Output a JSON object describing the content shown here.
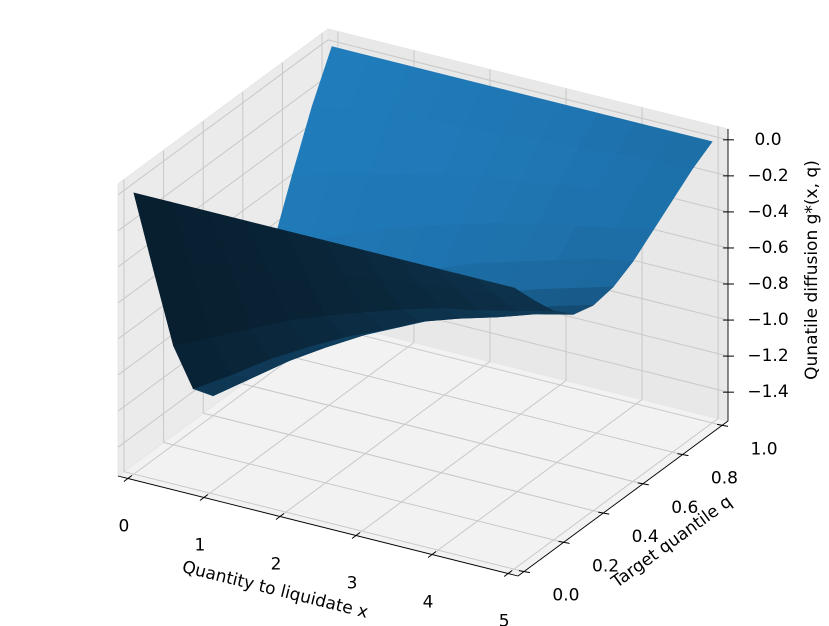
{
  "chart_data": {
    "type": "surface",
    "xlabel": "Quantity to liquidate x",
    "ylabel": "Target quantile q",
    "zlabel": "Qunatile diffusion g*(x, q)",
    "color": "#1f77b4",
    "x": [
      0,
      0.5,
      1,
      1.5,
      2,
      2.5,
      3,
      3.5,
      4,
      4.5,
      5
    ],
    "y": [
      0,
      0.1,
      0.2,
      0.3,
      0.4,
      0.5,
      0.6,
      0.7,
      0.8,
      0.9,
      1
    ],
    "z": [
      [
        0,
        0,
        0,
        0,
        0,
        0,
        0,
        0,
        0,
        0,
        0
      ],
      [
        -0.51,
        -0.46,
        -0.4,
        -0.36,
        -0.32,
        -0.28,
        -0.25,
        -0.22,
        -0.19,
        -0.17,
        -0.15
      ],
      [
        -1.01,
        -0.91,
        -0.81,
        -0.71,
        -0.63,
        -0.56,
        -0.49,
        -0.43,
        -0.39,
        -0.34,
        -0.29
      ],
      [
        -1.33,
        -1.2,
        -1.06,
        -0.94,
        -0.83,
        -0.74,
        -0.64,
        -0.57,
        -0.51,
        -0.44,
        -0.39
      ],
      [
        -1.45,
        -1.3,
        -1.15,
        -1.02,
        -0.9,
        -0.8,
        -0.7,
        -0.62,
        -0.55,
        -0.48,
        -0.42
      ],
      [
        -1.38,
        -1.24,
        -1.09,
        -0.97,
        -0.86,
        -0.76,
        -0.67,
        -0.59,
        -0.52,
        -0.46,
        -0.4
      ],
      [
        -1.16,
        -1.04,
        -0.92,
        -0.82,
        -0.72,
        -0.64,
        -0.56,
        -0.5,
        -0.44,
        -0.38,
        -0.34
      ],
      [
        -0.87,
        -0.78,
        -0.69,
        -0.61,
        -0.54,
        -0.48,
        -0.42,
        -0.37,
        -0.33,
        -0.29,
        -0.25
      ],
      [
        -0.55,
        -0.49,
        -0.44,
        -0.39,
        -0.34,
        -0.3,
        -0.27,
        -0.24,
        -0.21,
        -0.18,
        -0.16
      ],
      [
        -0.25,
        -0.22,
        -0.2,
        -0.17,
        -0.15,
        -0.14,
        -0.12,
        -0.11,
        -0.09,
        -0.08,
        -0.07
      ],
      [
        0,
        0,
        0,
        0,
        0,
        0,
        0,
        0,
        0,
        0,
        0
      ]
    ],
    "xlim": [
      -0.13,
      5.13
    ],
    "ylim": [
      -0.03,
      1.03
    ],
    "zlim": [
      -1.56,
      0.06
    ],
    "xticks": [
      0,
      1,
      2,
      3,
      4,
      5
    ],
    "yticks": [
      {
        "value": 0,
        "label": "0.0"
      },
      0.2,
      0.4,
      0.6,
      0.8,
      {
        "value": 1,
        "label": "1.0"
      }
    ],
    "zticks": [
      {
        "value": 0,
        "label": "0.0"
      },
      {
        "value": -0.2,
        "label": "−0.2"
      },
      {
        "value": -0.4,
        "label": "−0.4"
      },
      {
        "value": -0.6,
        "label": "−0.6"
      },
      {
        "value": -0.8,
        "label": "−0.8"
      },
      {
        "value": -1.0,
        "label": "−1.0"
      },
      {
        "value": -1.2,
        "label": "−1.2"
      },
      {
        "value": -1.4,
        "label": "−1.4"
      }
    ],
    "grid": true
  }
}
